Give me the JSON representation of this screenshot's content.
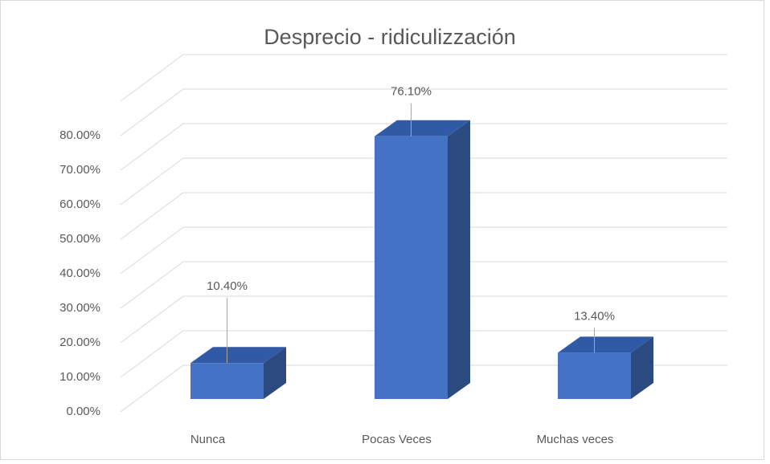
{
  "chart_data": {
    "type": "bar3d",
    "title": "Desprecio  - ridiculizzación",
    "categories": [
      "Nunca",
      "Pocas Veces",
      "Muchas veces"
    ],
    "values": [
      10.4,
      76.1,
      13.4
    ],
    "value_labels": [
      "10.40%",
      "76.10%",
      "13.40%"
    ],
    "color": "#4472c4",
    "ylim": [
      0,
      90
    ],
    "yticks": [
      {
        "value": 0,
        "label": "0.00%"
      },
      {
        "value": 10,
        "label": "10.00%"
      },
      {
        "value": 20,
        "label": "20.00%"
      },
      {
        "value": 30,
        "label": "30.00%"
      },
      {
        "value": 40,
        "label": "40.00%"
      },
      {
        "value": 50,
        "label": "50.00%"
      },
      {
        "value": 60,
        "label": "60.00%"
      },
      {
        "value": 70,
        "label": "70.00%"
      },
      {
        "value": 80,
        "label": "80.00%"
      }
    ],
    "grid": true
  }
}
